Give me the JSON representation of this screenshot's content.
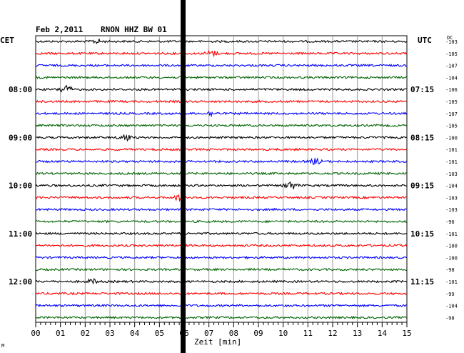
{
  "header": {
    "date": "Feb 2,2011",
    "station": "RNON HHZ BW 01",
    "left_tz": "CET",
    "right_tz": "UTC",
    "dc_label": "DC"
  },
  "xaxis": {
    "label": "Zeit [min]"
  },
  "corner_mark": "M",
  "chart_data": {
    "type": "line",
    "title": "Feb 2,2011   RNON HHZ BW 01",
    "xlabel": "Zeit [min]",
    "ylabel": "",
    "xlim": [
      0,
      15
    ],
    "xticks": [
      "00",
      "01",
      "02",
      "03",
      "04",
      "05",
      "06",
      "07",
      "08",
      "09",
      "10",
      "11",
      "12",
      "13",
      "14",
      "15"
    ],
    "trace_interval_min": 15,
    "trace_colors": [
      "#000000",
      "#ff0000",
      "#0000ff",
      "#006400"
    ],
    "left_time_labels": [
      {
        "trace": 4,
        "text": "08:00"
      },
      {
        "trace": 8,
        "text": "09:00"
      },
      {
        "trace": 12,
        "text": "10:00"
      },
      {
        "trace": 16,
        "text": "11:00"
      },
      {
        "trace": 20,
        "text": "12:00"
      }
    ],
    "right_time_labels": [
      {
        "trace": 4,
        "text": "07:15"
      },
      {
        "trace": 8,
        "text": "08:15"
      },
      {
        "trace": 12,
        "text": "09:15"
      },
      {
        "trace": 16,
        "text": "10:15"
      },
      {
        "trace": 20,
        "text": "11:15"
      }
    ],
    "dc_offsets": [
      -103,
      -105,
      -107,
      -104,
      -106,
      -105,
      -107,
      -105,
      -100,
      -101,
      -101,
      -103,
      -104,
      -103,
      -103,
      -96,
      -101,
      -100,
      -100,
      -98,
      -101,
      -99,
      -104,
      -98
    ],
    "events": [
      {
        "trace": 0,
        "minute": 2.5,
        "amp": 3
      },
      {
        "trace": 1,
        "minute": 7.1,
        "amp": 4
      },
      {
        "trace": 4,
        "minute": 1.2,
        "amp": 6
      },
      {
        "trace": 6,
        "minute": 7.1,
        "amp": 3
      },
      {
        "trace": 8,
        "minute": 3.6,
        "amp": 5
      },
      {
        "trace": 10,
        "minute": 11.3,
        "amp": 4
      },
      {
        "trace": 12,
        "minute": 10.3,
        "amp": 6
      },
      {
        "trace": 13,
        "minute": 5.8,
        "amp": 4
      },
      {
        "trace": 20,
        "minute": 2.3,
        "amp": 3
      }
    ],
    "gap_minute": 6.0,
    "grid": true
  }
}
